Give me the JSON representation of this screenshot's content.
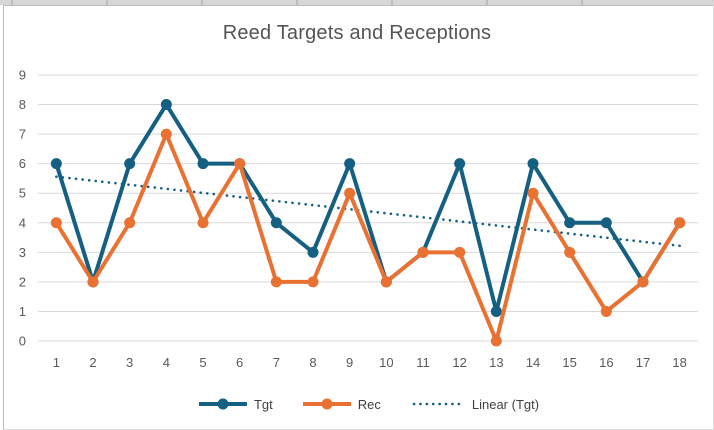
{
  "window": {
    "background": "spreadsheet",
    "strip_color": "#d7d7d7"
  },
  "chart_data": {
    "type": "line",
    "title": "Reed Targets and Receptions",
    "x": [
      1,
      2,
      3,
      4,
      5,
      6,
      7,
      8,
      9,
      10,
      11,
      12,
      13,
      14,
      15,
      16,
      17,
      18
    ],
    "series": [
      {
        "name": "Tgt",
        "color": "#156082",
        "values": [
          6,
          2,
          6,
          8,
          6,
          6,
          4,
          3,
          6,
          2,
          3,
          6,
          1,
          6,
          4,
          4,
          2,
          4
        ]
      },
      {
        "name": "Rec",
        "color": "#E97132",
        "values": [
          4,
          2,
          4,
          7,
          4,
          6,
          2,
          2,
          5,
          2,
          3,
          3,
          0,
          5,
          3,
          1,
          2,
          4
        ]
      }
    ],
    "trendline": {
      "name": "Linear (Tgt)",
      "of_series": "Tgt",
      "color": "#156082",
      "style": "dotted",
      "start_value": 5.56,
      "end_value": 3.22
    },
    "y_ticks": [
      0,
      1,
      2,
      3,
      4,
      5,
      6,
      7,
      8,
      9
    ],
    "ylim": [
      0,
      9
    ],
    "grid": true,
    "gridline_color": "#d9d9d9",
    "axis_label_color": "#595959",
    "legend_position": "bottom"
  }
}
